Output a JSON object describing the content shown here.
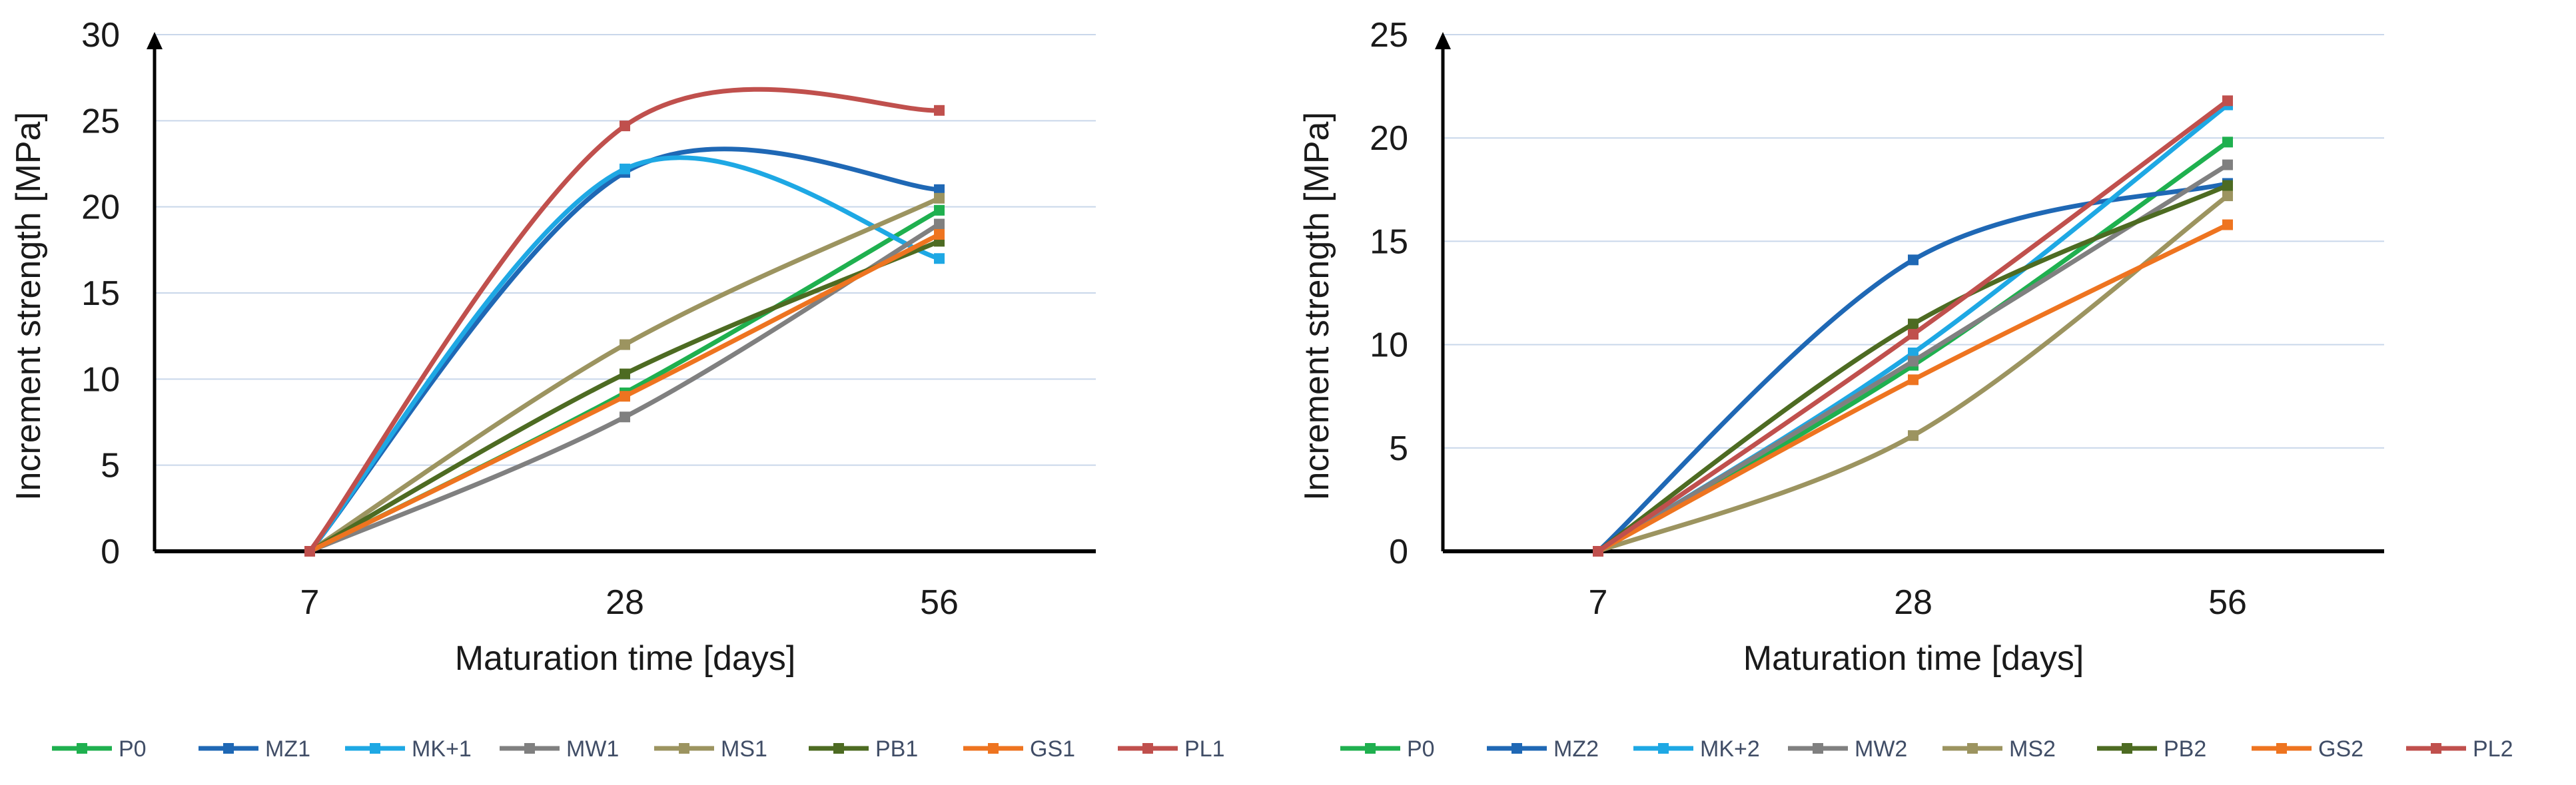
{
  "chart_data": [
    {
      "type": "line",
      "title": "",
      "xlabel": "Maturation time [days]",
      "ylabel": "Increment strength [MPa]",
      "categories": [
        "7",
        "28",
        "56"
      ],
      "ylim": [
        0,
        30
      ],
      "yticks": [
        0,
        5,
        10,
        15,
        20,
        25,
        30
      ],
      "grid": true,
      "legend_position": "bottom",
      "series": [
        {
          "name": "P0",
          "color": "#1fb04f",
          "values": [
            0,
            9.2,
            19.8
          ]
        },
        {
          "name": "MZ1",
          "color": "#1f68b5",
          "values": [
            0,
            22.0,
            21.0
          ]
        },
        {
          "name": "MK+1",
          "color": "#1ea8e4",
          "values": [
            0,
            22.2,
            17.0
          ]
        },
        {
          "name": "MW1",
          "color": "#808080",
          "values": [
            0,
            7.8,
            19.0
          ]
        },
        {
          "name": "MS1",
          "color": "#9c9460",
          "values": [
            0,
            12.0,
            20.5
          ]
        },
        {
          "name": "PB1",
          "color": "#4d6b22",
          "values": [
            0,
            10.3,
            18.0
          ]
        },
        {
          "name": "GS1",
          "color": "#ee7420",
          "values": [
            0,
            9.0,
            18.4
          ]
        },
        {
          "name": "PL1",
          "color": "#c0504d",
          "values": [
            0,
            24.7,
            25.6
          ]
        }
      ]
    },
    {
      "type": "line",
      "title": "",
      "xlabel": "Maturation time [days]",
      "ylabel": "Increment strength [MPa]",
      "categories": [
        "7",
        "28",
        "56"
      ],
      "ylim": [
        0,
        25
      ],
      "yticks": [
        0,
        5,
        10,
        15,
        20,
        25
      ],
      "grid": true,
      "legend_position": "bottom",
      "series": [
        {
          "name": "P0",
          "color": "#1fb04f",
          "values": [
            0,
            9.0,
            19.8
          ]
        },
        {
          "name": "MZ2",
          "color": "#1f68b5",
          "values": [
            0,
            14.1,
            17.8
          ]
        },
        {
          "name": "MK+2",
          "color": "#1ea8e4",
          "values": [
            0,
            9.6,
            21.6
          ]
        },
        {
          "name": "MW2",
          "color": "#808080",
          "values": [
            0,
            9.2,
            18.7
          ]
        },
        {
          "name": "MS2",
          "color": "#9c9460",
          "values": [
            0,
            5.6,
            17.2
          ]
        },
        {
          "name": "PB2",
          "color": "#4d6b22",
          "values": [
            0,
            11.0,
            17.7
          ]
        },
        {
          "name": "GS2",
          "color": "#ee7420",
          "values": [
            0,
            8.3,
            15.8
          ]
        },
        {
          "name": "PL2",
          "color": "#c0504d",
          "values": [
            0,
            10.5,
            21.8
          ]
        }
      ]
    }
  ]
}
